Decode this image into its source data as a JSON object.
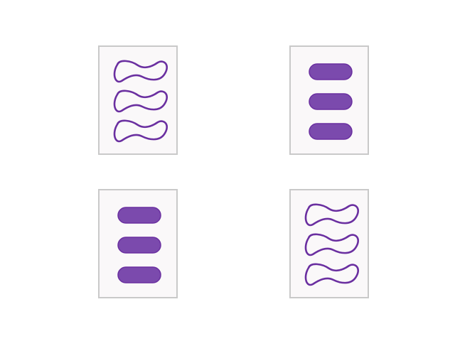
{
  "game": {
    "name": "",
    "cards": [
      {
        "id": 0,
        "number": 3,
        "shape": "squiggle",
        "shading": "open",
        "color": "#6a2fa0"
      },
      {
        "id": 1,
        "number": 3,
        "shape": "oval",
        "shading": "solid",
        "color": "#6a2fa0"
      },
      {
        "id": 2,
        "number": 3,
        "shape": "oval",
        "shading": "solid",
        "color": "#6a2fa0"
      },
      {
        "id": 3,
        "number": 3,
        "shape": "squiggle",
        "shading": "open",
        "color": "#6a2fa0"
      }
    ]
  }
}
